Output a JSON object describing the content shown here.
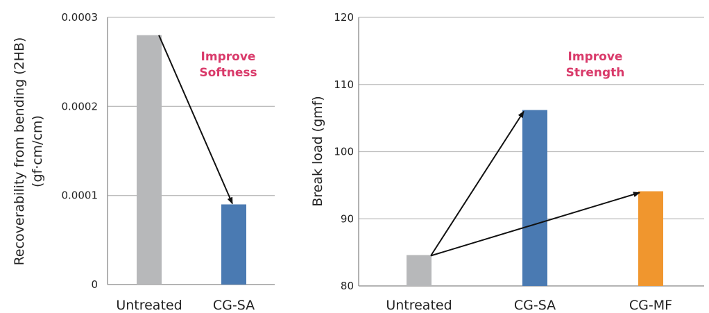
{
  "chart_data": [
    {
      "type": "bar",
      "categories": [
        "Untreated",
        "CG-SA"
      ],
      "values": [
        0.00028,
        9e-05
      ],
      "bar_colors": [
        "#B7B8BA",
        "#4A7AB2"
      ],
      "yticks": [
        "0",
        "0.0001",
        "0.0002",
        "0.0003"
      ],
      "ylim": [
        0,
        0.0003
      ],
      "ylabel_lines": [
        "Recoverability from bending (2HB)",
        "(gf·cm/cm)"
      ],
      "annotation_lines": [
        "Improve",
        "Softness"
      ],
      "annotation_color": "#D93A6A",
      "grid": true
    },
    {
      "type": "bar",
      "categories": [
        "Untreated",
        "CG-SA",
        "CG-MF"
      ],
      "values": [
        84.6,
        106.2,
        94.1
      ],
      "bar_colors": [
        "#B7B8BA",
        "#4A7AB2",
        "#F0962E"
      ],
      "yticks": [
        "80",
        "90",
        "100",
        "110",
        "120"
      ],
      "ylim": [
        80,
        120
      ],
      "ylabel_lines": [
        "Break load (gmf)"
      ],
      "annotation_lines": [
        "Improve",
        "Strength"
      ],
      "annotation_color": "#D93A6A",
      "grid": true
    }
  ]
}
